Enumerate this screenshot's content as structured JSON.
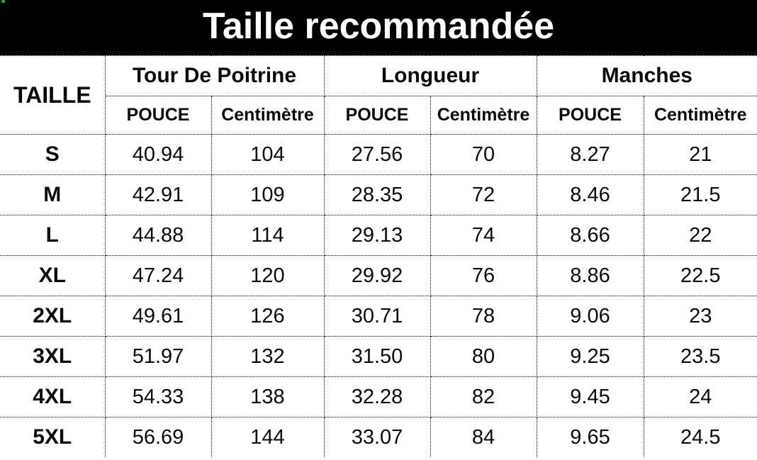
{
  "chart_data": {
    "type": "table",
    "title": "Taille recommandée",
    "size_column_header": "TAILLE",
    "column_groups": [
      "Tour De Poitrine",
      "Longueur",
      "Manches"
    ],
    "unit_headers": [
      "POUCE",
      "Centimètre",
      "POUCE",
      "Centimètre",
      "POUCE",
      "Centimètre"
    ],
    "rows": [
      {
        "size": "S",
        "values": [
          "40.94",
          "104",
          "27.56",
          "70",
          "8.27",
          "21"
        ]
      },
      {
        "size": "M",
        "values": [
          "42.91",
          "109",
          "28.35",
          "72",
          "8.46",
          "21.5"
        ]
      },
      {
        "size": "L",
        "values": [
          "44.88",
          "114",
          "29.13",
          "74",
          "8.66",
          "22"
        ]
      },
      {
        "size": "XL",
        "values": [
          "47.24",
          "120",
          "29.92",
          "76",
          "8.86",
          "22.5"
        ]
      },
      {
        "size": "2XL",
        "values": [
          "49.61",
          "126",
          "30.71",
          "78",
          "9.06",
          "23"
        ]
      },
      {
        "size": "3XL",
        "values": [
          "51.97",
          "132",
          "31.50",
          "80",
          "9.25",
          "23.5"
        ]
      },
      {
        "size": "4XL",
        "values": [
          "54.33",
          "138",
          "32.28",
          "82",
          "9.45",
          "24"
        ]
      },
      {
        "size": "5XL",
        "values": [
          "56.69",
          "144",
          "33.07",
          "84",
          "9.65",
          "24.5"
        ]
      }
    ],
    "layout": {
      "grid": "dotted",
      "legend_position": "none"
    }
  },
  "colors": {
    "title_bar_background": "#000000",
    "title_bar_text": "#ffffff",
    "table_text": "#0a0a0a",
    "grid_border": "#000000",
    "background": "#ffffff",
    "corner_artifact": "#1fa31f"
  }
}
